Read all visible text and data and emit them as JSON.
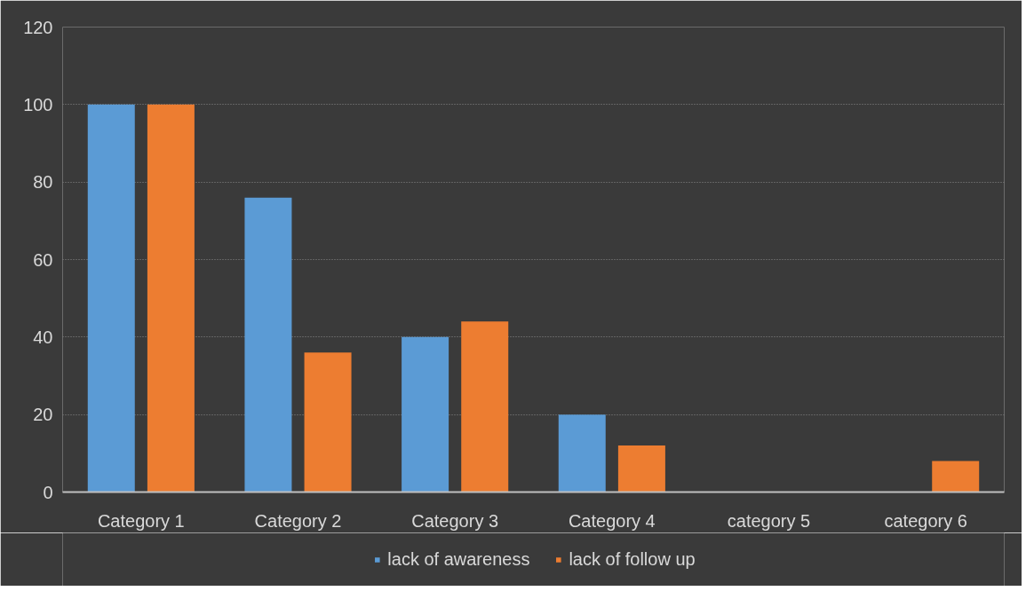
{
  "chart_data": {
    "type": "bar",
    "categories": [
      "Category 1",
      "Category 2",
      "Category 3",
      "Category 4",
      "category 5",
      "category 6"
    ],
    "series": [
      {
        "name": "lack of awareness",
        "color": "#5b9bd5",
        "values": [
          100,
          76,
          40,
          20,
          0,
          0
        ]
      },
      {
        "name": "lack of follow up",
        "color": "#ed7d31",
        "values": [
          100,
          36,
          44,
          12,
          0,
          8
        ]
      }
    ],
    "ylim": [
      0,
      120
    ],
    "yticks": [
      0,
      20,
      40,
      60,
      80,
      100,
      120
    ],
    "grid": "y",
    "legend": "bottom"
  }
}
